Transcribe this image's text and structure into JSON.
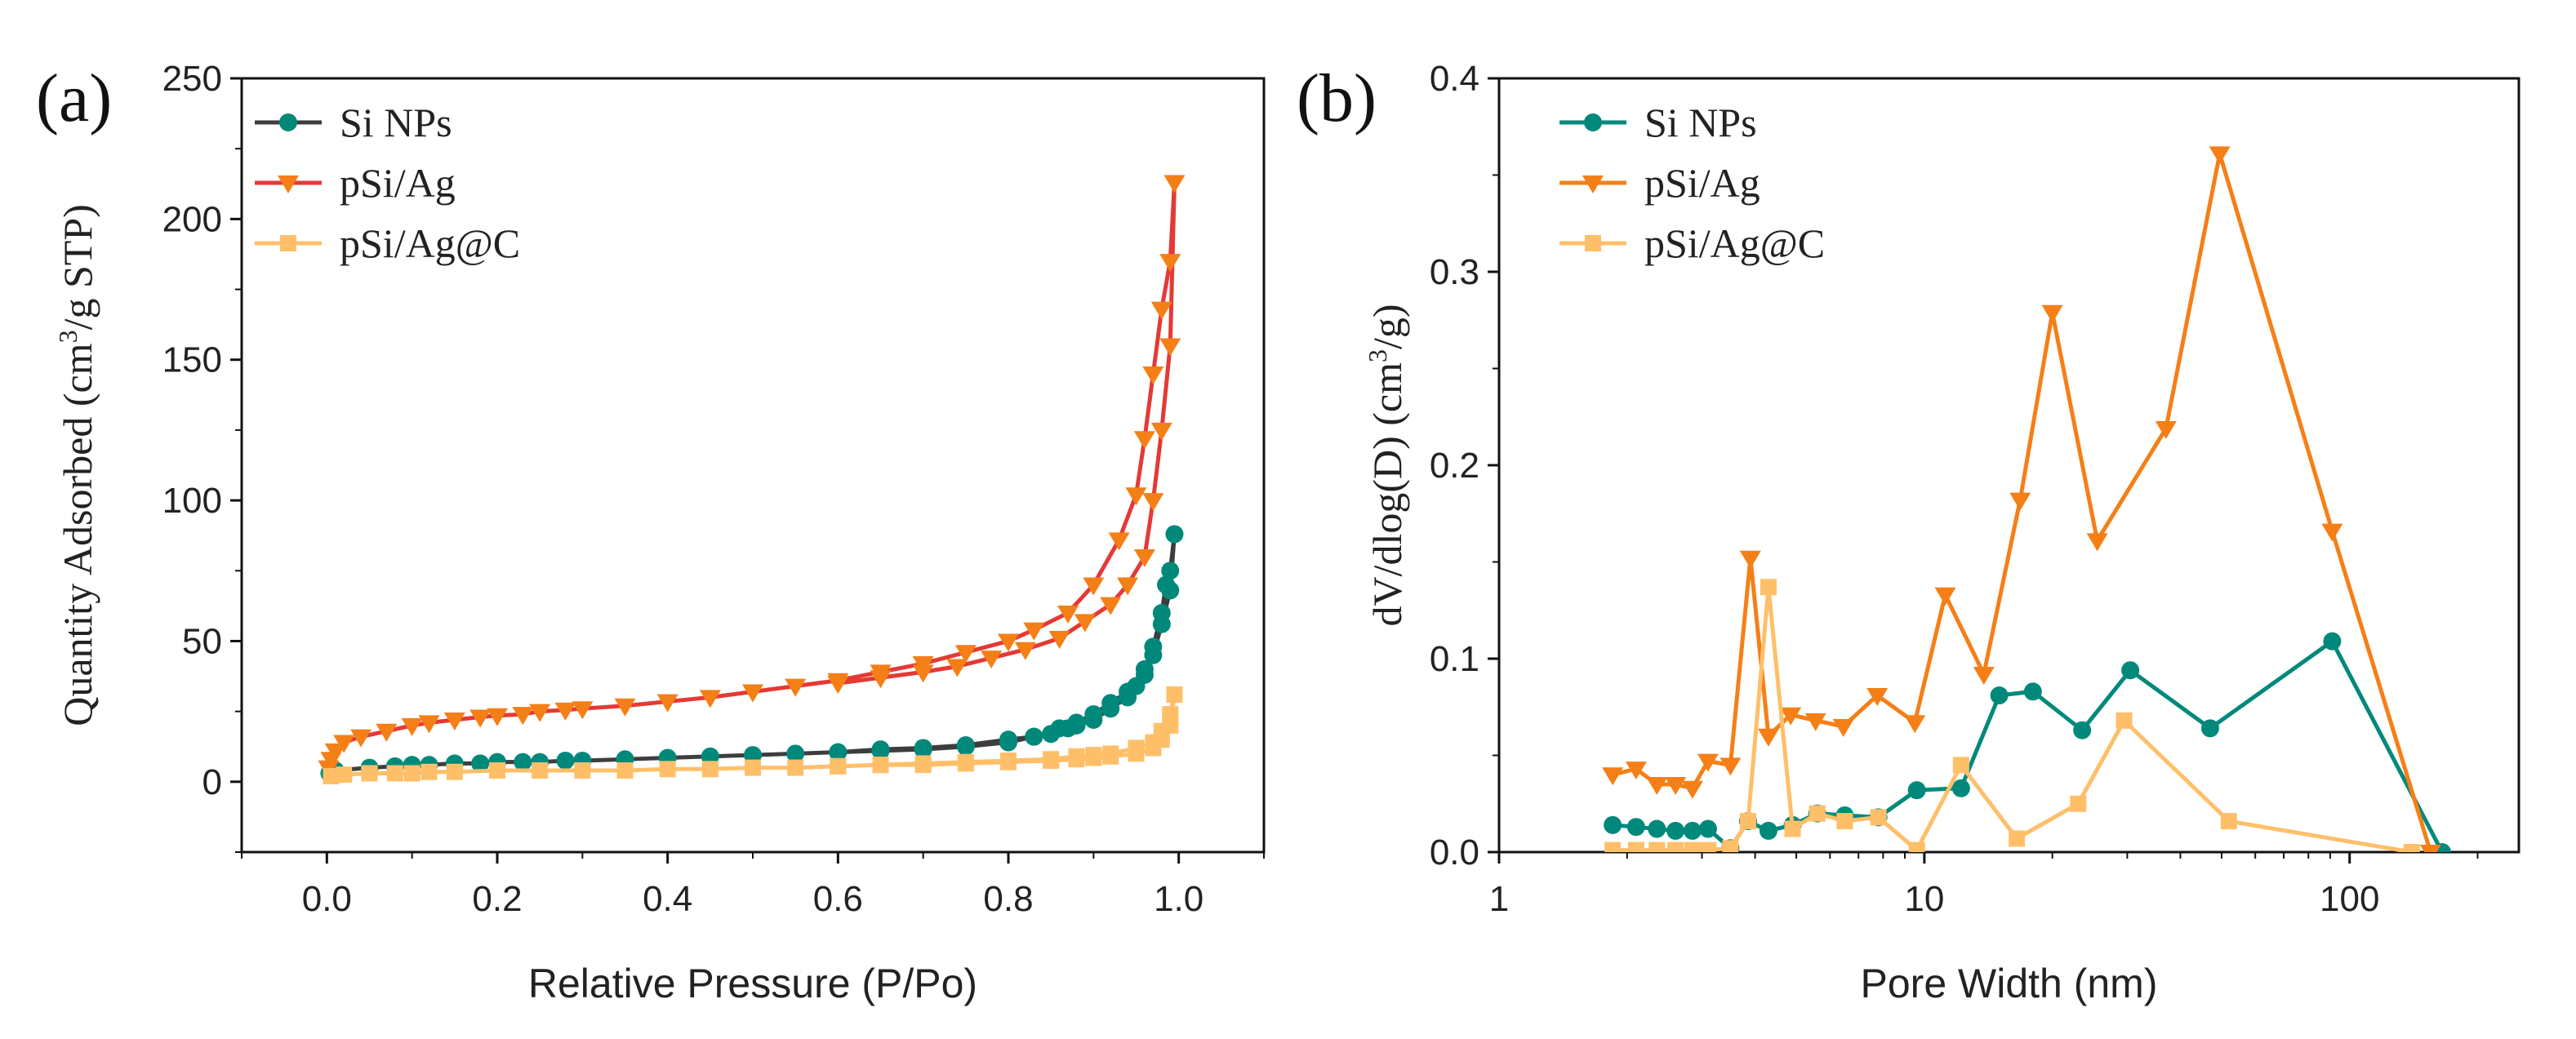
{
  "chart_data": [
    {
      "panel_label": "(a)",
      "type": "line",
      "xscale": "linear",
      "xlabel": "Relative Pressure (P/Po)",
      "ylabel_parts": {
        "before": "Quantity Adsorbed (cm",
        "sup": "3",
        "after": "/g STP)"
      },
      "xlim": [
        -0.1,
        1.1
      ],
      "ylim": [
        -25,
        250
      ],
      "xticks": [
        0.0,
        0.2,
        0.4,
        0.6,
        0.8,
        1.0
      ],
      "xtick_labels": [
        "0.0",
        "0.2",
        "0.4",
        "0.6",
        "0.8",
        "1.0"
      ],
      "yticks": [
        0,
        50,
        100,
        150,
        200,
        250
      ],
      "ytick_labels": [
        "0",
        "50",
        "100",
        "150",
        "200",
        "250"
      ],
      "legend": {
        "position": "top-left"
      },
      "series": [
        {
          "name": "Si NPs",
          "color": "#00897b",
          "line_color": "#3d3d3d",
          "marker": "circle",
          "x": [
            0.003,
            0.01,
            0.05,
            0.08,
            0.1,
            0.12,
            0.15,
            0.18,
            0.2,
            0.23,
            0.25,
            0.28,
            0.3,
            0.35,
            0.4,
            0.45,
            0.5,
            0.55,
            0.6,
            0.65,
            0.7,
            0.75,
            0.8,
            0.83,
            0.85,
            0.87,
            0.88,
            0.9,
            0.92,
            0.94,
            0.95,
            0.96,
            0.97,
            0.98,
            0.985,
            0.99,
            0.995,
            0.99,
            0.98,
            0.97,
            0.96,
            0.94,
            0.92,
            0.9,
            0.88,
            0.86,
            0.83,
            0.8,
            0.75,
            0.7,
            0.65,
            0.6
          ],
          "y": [
            3,
            4,
            5,
            5.5,
            6,
            6,
            6.5,
            6.5,
            7,
            7,
            7,
            7.5,
            7.5,
            8,
            8.5,
            9,
            9.5,
            10,
            10.5,
            11.5,
            12,
            13,
            15,
            16,
            17,
            19,
            20,
            22,
            26,
            30,
            34,
            40,
            48,
            60,
            70,
            75,
            88,
            68,
            56,
            45,
            38,
            32,
            28,
            24,
            21,
            19,
            16,
            14,
            12.5,
            11.5,
            11,
            10.5
          ]
        },
        {
          "name": "pSi/Ag",
          "color": "#f57f17",
          "line_color": "#e53935",
          "marker": "triangle-down",
          "x": [
            0.002,
            0.005,
            0.01,
            0.02,
            0.04,
            0.07,
            0.1,
            0.12,
            0.15,
            0.18,
            0.2,
            0.23,
            0.25,
            0.28,
            0.3,
            0.35,
            0.4,
            0.45,
            0.5,
            0.55,
            0.6,
            0.65,
            0.7,
            0.75,
            0.8,
            0.83,
            0.87,
            0.9,
            0.93,
            0.95,
            0.96,
            0.97,
            0.98,
            0.99,
            0.995,
            0.99,
            0.98,
            0.97,
            0.96,
            0.94,
            0.92,
            0.89,
            0.86,
            0.82,
            0.78,
            0.74,
            0.7,
            0.65,
            0.6
          ],
          "y": [
            5,
            8,
            11,
            14,
            16,
            18,
            20,
            21,
            22,
            23,
            23.5,
            24,
            25,
            25.5,
            26,
            27,
            28.5,
            30,
            32,
            34,
            36,
            39,
            42,
            46,
            50,
            54,
            60,
            70,
            86,
            102,
            122,
            145,
            168,
            185,
            213,
            155,
            125,
            100,
            80,
            70,
            63,
            57,
            51,
            47,
            44,
            41,
            39,
            37,
            35
          ]
        },
        {
          "name": "pSi/Ag@C",
          "color": "#ffbf69",
          "line_color": "#ffbf69",
          "marker": "square",
          "x": [
            0.005,
            0.02,
            0.05,
            0.08,
            0.1,
            0.12,
            0.15,
            0.2,
            0.25,
            0.3,
            0.35,
            0.4,
            0.45,
            0.5,
            0.55,
            0.6,
            0.65,
            0.7,
            0.75,
            0.8,
            0.85,
            0.88,
            0.9,
            0.92,
            0.95,
            0.97,
            0.98,
            0.99,
            0.995,
            0.99,
            0.98,
            0.97,
            0.95,
            0.92,
            0.9,
            0.88,
            0.85,
            0.8,
            0.75,
            0.7,
            0.65,
            0.6
          ],
          "y": [
            2,
            2.5,
            3,
            3,
            3,
            3.5,
            3.5,
            4,
            4,
            4,
            4,
            4.5,
            4.5,
            5,
            5,
            5.5,
            6,
            6.5,
            7,
            7.5,
            8,
            9,
            9.5,
            10,
            12,
            14,
            18,
            24,
            31,
            20,
            15,
            12,
            10,
            9,
            8.5,
            8,
            7.5,
            7,
            6.5,
            6,
            6,
            5.5
          ]
        }
      ]
    },
    {
      "panel_label": "(b)",
      "type": "line",
      "xscale": "log",
      "xlabel": "Pore Width (nm)",
      "ylabel_parts": {
        "before": "dV/dlog(D) (cm",
        "sup": "3",
        "after": "/g)"
      },
      "xlim": [
        1,
        250
      ],
      "ylim": [
        0,
        0.4
      ],
      "xticks": [
        1,
        10,
        100
      ],
      "xtick_labels": [
        "1",
        "10",
        "100"
      ],
      "yticks": [
        0.0,
        0.1,
        0.2,
        0.3,
        0.4
      ],
      "ytick_labels": [
        "0.0",
        "0.1",
        "0.2",
        "0.3",
        "0.4"
      ],
      "legend": {
        "position": "top-left"
      },
      "series": [
        {
          "name": "Si NPs",
          "color": "#00897b",
          "line_color": "#00897b",
          "marker": "circle",
          "x": [
            1.85,
            2.1,
            2.35,
            2.6,
            2.85,
            3.1,
            3.5,
            3.85,
            4.3,
            4.9,
            5.6,
            6.5,
            7.8,
            9.6,
            12.2,
            15.0,
            18.0,
            23.5,
            30.5,
            47.0,
            91.0,
            165.0
          ],
          "y": [
            0.014,
            0.013,
            0.012,
            0.011,
            0.011,
            0.012,
            0.002,
            0.016,
            0.011,
            0.014,
            0.02,
            0.019,
            0.018,
            0.032,
            0.033,
            0.081,
            0.083,
            0.063,
            0.094,
            0.064,
            0.109,
            0.0
          ]
        },
        {
          "name": "pSi/Ag",
          "color": "#f57f17",
          "line_color": "#f57f17",
          "marker": "triangle-down",
          "x": [
            1.85,
            2.1,
            2.35,
            2.6,
            2.85,
            3.1,
            3.5,
            3.9,
            4.3,
            4.85,
            5.55,
            6.45,
            7.75,
            9.5,
            11.2,
            13.8,
            16.8,
            20.0,
            25.5,
            37.0,
            49.5,
            91.0,
            155.0
          ],
          "y": [
            0.04,
            0.043,
            0.035,
            0.035,
            0.033,
            0.047,
            0.045,
            0.152,
            0.06,
            0.071,
            0.068,
            0.065,
            0.081,
            0.067,
            0.133,
            0.092,
            0.182,
            0.279,
            0.161,
            0.219,
            0.361,
            0.166,
            0.0
          ]
        },
        {
          "name": "pSi/Ag@C",
          "color": "#ffbf69",
          "line_color": "#ffbf69",
          "marker": "square",
          "x": [
            1.85,
            2.1,
            2.35,
            2.6,
            2.85,
            3.1,
            3.5,
            3.85,
            4.3,
            4.9,
            5.6,
            6.5,
            7.8,
            9.6,
            12.2,
            16.5,
            23.0,
            29.5,
            52.0,
            140.0
          ],
          "y": [
            0.001,
            0.001,
            0.001,
            0.001,
            0.001,
            0.001,
            0.002,
            0.016,
            0.137,
            0.012,
            0.02,
            0.016,
            0.018,
            0.001,
            0.045,
            0.007,
            0.025,
            0.068,
            0.016,
            0.0
          ]
        }
      ]
    }
  ]
}
